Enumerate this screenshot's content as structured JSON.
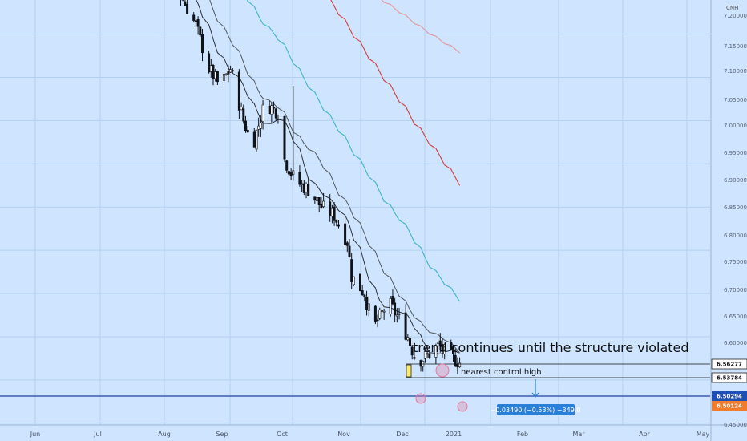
{
  "chart_data": {
    "type": "candlestick",
    "symbol_label": "CNH",
    "x_tick_labels": [
      "Jun",
      "Jul",
      "Aug",
      "Sep",
      "Oct",
      "Nov",
      "Dec",
      "2021",
      "Feb",
      "Mar",
      "Apr",
      "May"
    ],
    "y_tick_labels": [
      "7.20000",
      "7.15000",
      "7.10000",
      "7.05000",
      "7.00000",
      "6.95000",
      "6.90000",
      "6.85000",
      "6.80000",
      "6.75000",
      "6.70000",
      "6.65000",
      "6.60000",
      "6.45000"
    ],
    "y_range": [
      6.44,
      7.23
    ],
    "grid": true,
    "price_tags": [
      {
        "label": "6.56277",
        "style": "white"
      },
      {
        "label": "6.53784",
        "style": "white"
      },
      {
        "label": "6.50294",
        "style": "blue"
      },
      {
        "label": "6.50124",
        "style": "orange"
      }
    ],
    "moving_averages": [
      {
        "color": "#2c3038"
      },
      {
        "color": "#505860"
      },
      {
        "color": "#3cb4c8"
      },
      {
        "color": "#d43c3c"
      },
      {
        "color": "#e88a8a"
      }
    ],
    "annotations": {
      "main": "trend continues until the structure violated",
      "control_high": "nearest control high",
      "measure": "−0.03490 (−0.53%) −349.0"
    },
    "colors": {
      "background": "#cfe5ff",
      "candle_body": "#0f1218",
      "horizontal_level": "#1e40a0",
      "tag_blue": "#1e4fb4",
      "tag_orange": "#f07c2c",
      "measure_box": "#2a7fd6",
      "circle": "#e07aa0",
      "highlight": "#ffe96a"
    }
  }
}
